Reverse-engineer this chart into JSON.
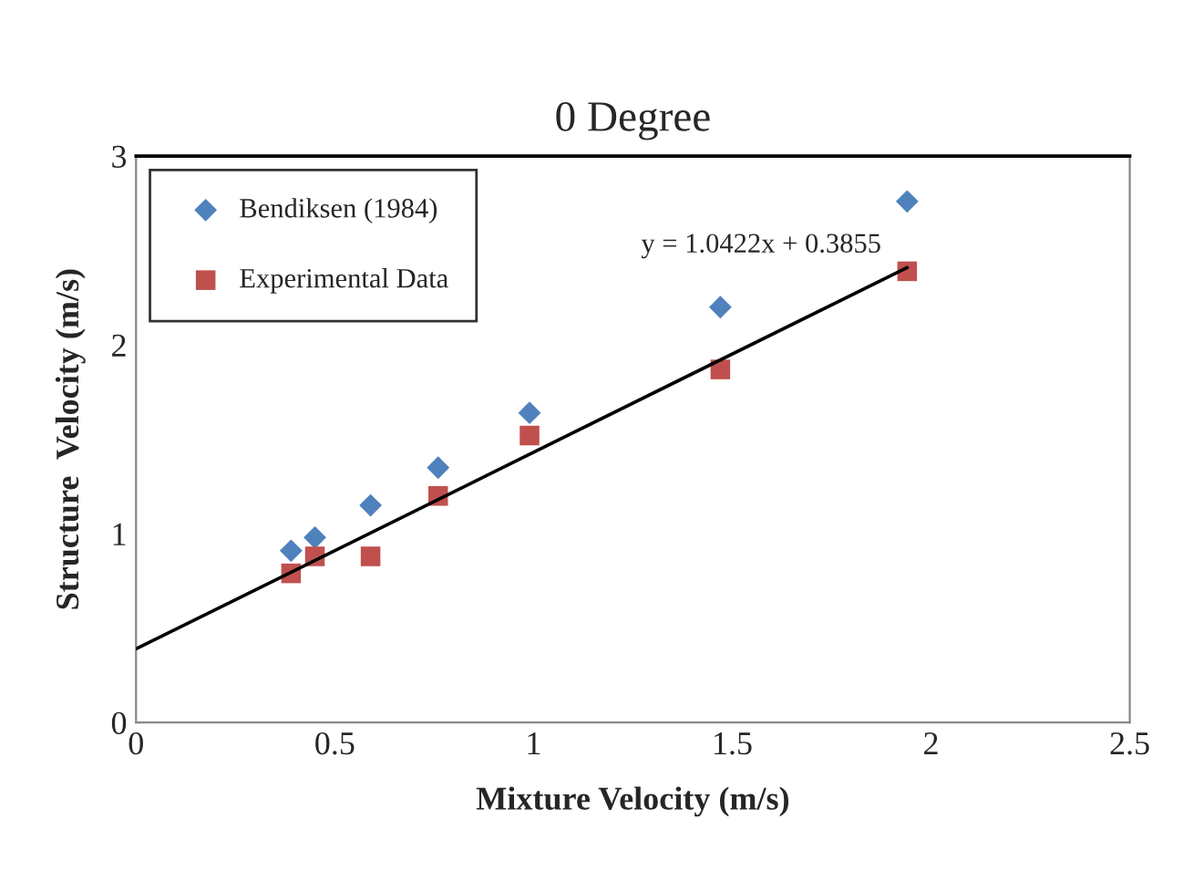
{
  "chart_data": {
    "type": "scatter",
    "title": "0 Degree",
    "xlabel": "Mixture Velocity (m/s)",
    "ylabel": "Structure  Velocity (m/s)",
    "x": [
      0.39,
      0.45,
      0.59,
      0.76,
      0.99,
      1.47,
      1.94
    ],
    "series": [
      {
        "name": "Bendiksen (1984)",
        "color": "#4f81bd",
        "marker": "diamond",
        "values": [
          0.91,
          0.98,
          1.15,
          1.35,
          1.64,
          2.2,
          2.76
        ]
      },
      {
        "name": "Experimental Data",
        "color": "#c0504d",
        "marker": "square",
        "values": [
          0.79,
          0.88,
          0.88,
          1.2,
          1.52,
          1.87,
          2.39
        ]
      },
      {
        "type": "line",
        "color": "#000000",
        "marker": "none",
        "x": [
          0,
          1.94
        ],
        "values": [
          0.39,
          2.41
        ]
      }
    ],
    "annotations": [
      "y = 1.0422x + 0.3855"
    ],
    "xlim": [
      0,
      2.5
    ],
    "xticks": [
      0,
      0.5,
      1,
      1.5,
      2,
      2.5
    ],
    "ylim": [
      0,
      3
    ],
    "yticks": [
      0,
      1,
      2,
      3
    ],
    "grid": false,
    "legend": "top left"
  }
}
